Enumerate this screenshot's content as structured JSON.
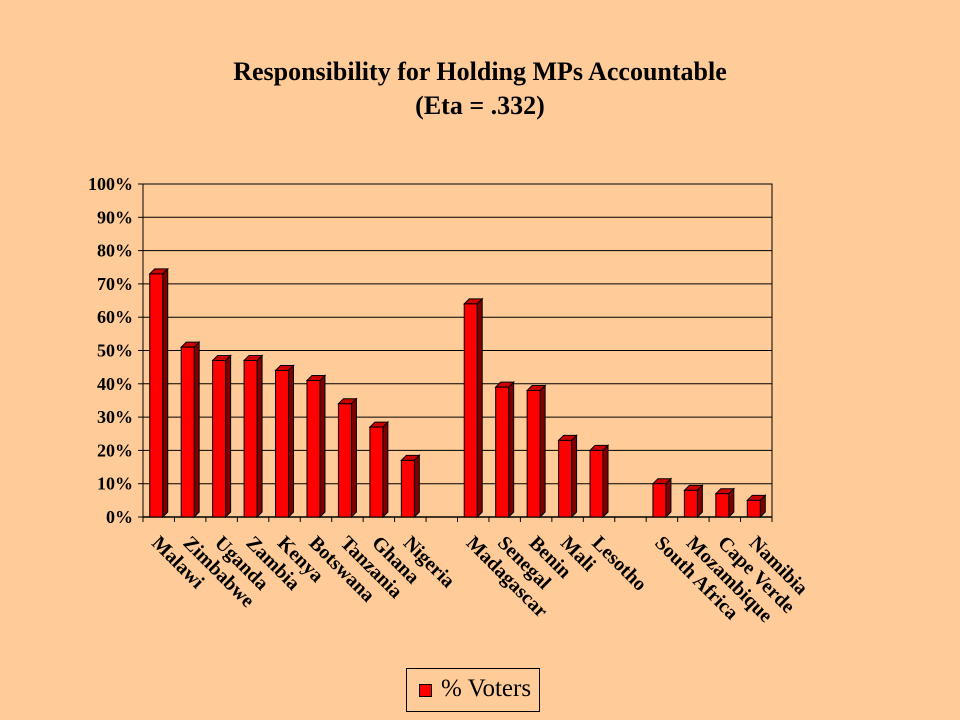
{
  "chart_data": {
    "type": "bar",
    "title": "Responsibility for Holding MPs Accountable",
    "subtitle": "(Eta = .332)",
    "xlabel": "",
    "ylabel": "",
    "ylim": [
      0,
      100
    ],
    "yticks": [
      "0%",
      "10%",
      "20%",
      "30%",
      "40%",
      "50%",
      "60%",
      "70%",
      "80%",
      "90%",
      "100%"
    ],
    "grid": true,
    "legend_position": "bottom",
    "categories": [
      "Malawi",
      "Zimbabwe",
      "Uganda",
      "Zambia",
      "Kenya",
      "Botswana",
      "Tanzania",
      "Ghana",
      "Nigeria",
      "",
      "Madagascar",
      "Senegal",
      "Benin",
      "Mali",
      "Lesotho",
      "",
      "South Africa",
      "Mozambique",
      "Cape Verde",
      "Namibia"
    ],
    "series": [
      {
        "name": "% Voters",
        "color": "#FF0000",
        "values": [
          73,
          51,
          47,
          47,
          44,
          41,
          34,
          27,
          17,
          null,
          64,
          39,
          38,
          23,
          20,
          null,
          10,
          8,
          7,
          5
        ]
      }
    ]
  }
}
